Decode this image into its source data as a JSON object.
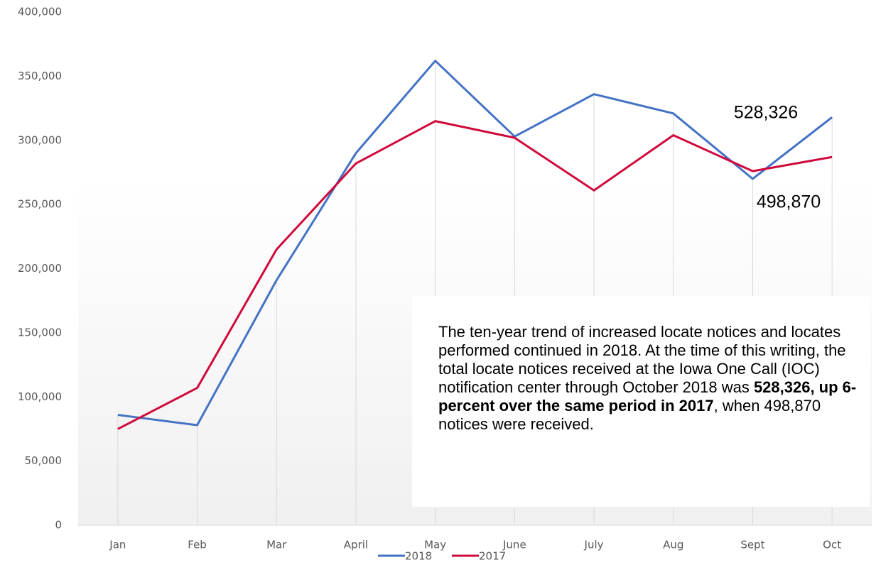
{
  "chart_data": {
    "type": "line",
    "categories": [
      "Jan",
      "Feb",
      "Mar",
      "April",
      "May",
      "June",
      "July",
      "Aug",
      "Sept",
      "Oct"
    ],
    "series": [
      {
        "name": "2018",
        "color": "#4472c4",
        "values": [
          86000,
          78000,
          191000,
          290000,
          362000,
          303000,
          336000,
          321000,
          270000,
          318000
        ]
      },
      {
        "name": "2017",
        "color": "#d0093c",
        "values": [
          75000,
          107000,
          215000,
          282000,
          315000,
          302000,
          261000,
          304000,
          276000,
          287000
        ]
      }
    ],
    "ylim": [
      0,
      400000
    ],
    "yticks": [
      0,
      {
        "value": 50000,
        "label": "50,000"
      },
      {
        "value": 100000,
        "label": "100,000"
      },
      {
        "value": 150000,
        "label": "150,000"
      },
      {
        "value": 200000,
        "label": "200,000"
      },
      {
        "value": 250000,
        "label": "250,000"
      },
      {
        "value": 300000,
        "label": "300,000"
      },
      {
        "value": 350000,
        "label": "350,000"
      },
      {
        "value": 400000,
        "label": "400,000"
      }
    ],
    "grid": true,
    "legend": "bottom",
    "annotations": [
      "528,326",
      "498,870"
    ],
    "text_box": {
      "before": "The ten-year trend of increased locate notices and locates performed continued in 2018. At the time of this writing, the total locate notices received at the Iowa One Call (IOC) notification center through October 2018 was ",
      "bold": "528,326, up 6-percent over the same period in 2017",
      "after": ", when 498,870 notices were received."
    }
  }
}
